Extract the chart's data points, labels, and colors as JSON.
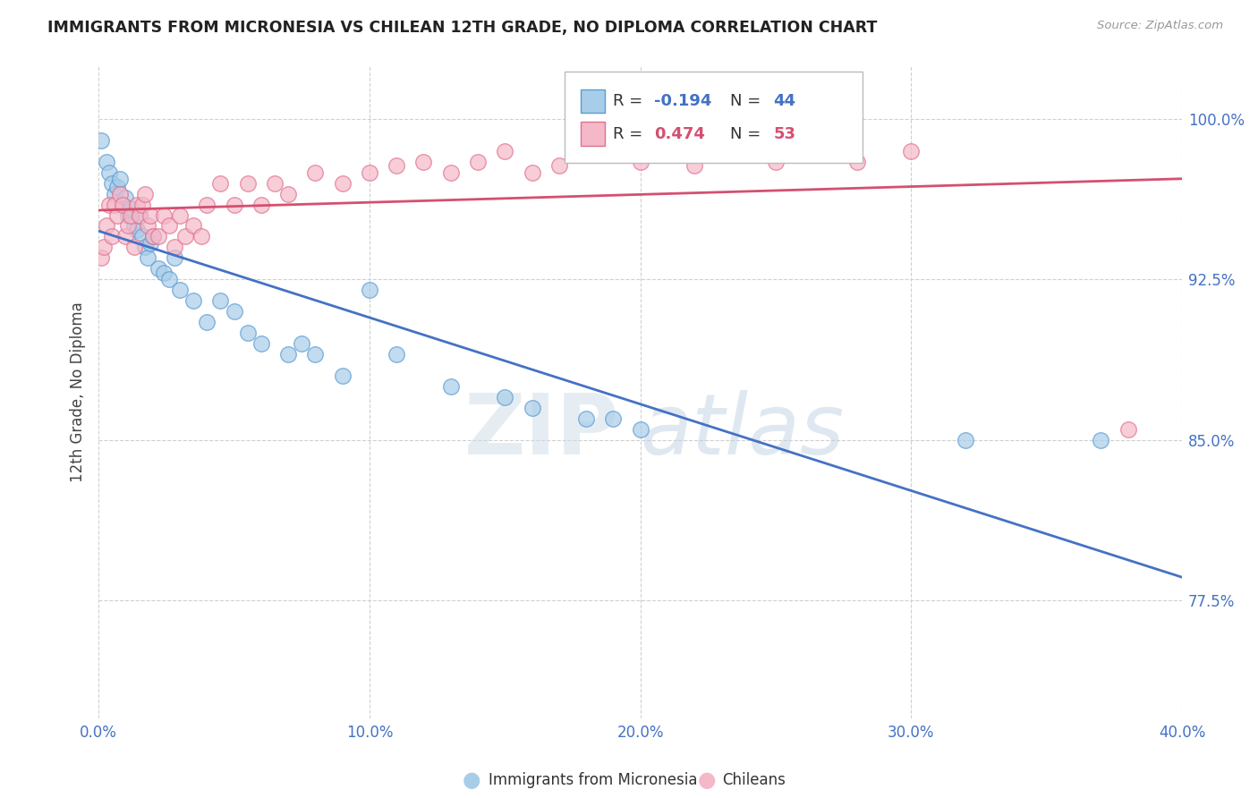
{
  "title": "IMMIGRANTS FROM MICRONESIA VS CHILEAN 12TH GRADE, NO DIPLOMA CORRELATION CHART",
  "source": "Source: ZipAtlas.com",
  "xlabel_ticks": [
    "0.0%",
    "10.0%",
    "20.0%",
    "30.0%",
    "40.0%"
  ],
  "xlabel_tick_vals": [
    0.0,
    0.1,
    0.2,
    0.3,
    0.4
  ],
  "ylabel_ticks": [
    "77.5%",
    "85.0%",
    "92.5%",
    "100.0%"
  ],
  "ylabel_tick_vals": [
    0.775,
    0.85,
    0.925,
    1.0
  ],
  "xlim": [
    0.0,
    0.4
  ],
  "ylim": [
    0.72,
    1.025
  ],
  "ylabel": "12th Grade, No Diploma",
  "blue_label": "Immigrants from Micronesia",
  "pink_label": "Chileans",
  "blue_R": "-0.194",
  "blue_N": "44",
  "pink_R": "0.474",
  "pink_N": "53",
  "blue_color": "#a8cde8",
  "pink_color": "#f4b8c8",
  "blue_edge_color": "#5b9bd5",
  "pink_edge_color": "#e07090",
  "blue_line_color": "#4472c4",
  "pink_line_color": "#d45070",
  "watermark_zip": "ZIP",
  "watermark_atlas": "atlas",
  "blue_scatter_x": [
    0.001,
    0.003,
    0.004,
    0.005,
    0.006,
    0.007,
    0.008,
    0.009,
    0.01,
    0.011,
    0.012,
    0.013,
    0.014,
    0.015,
    0.016,
    0.017,
    0.018,
    0.019,
    0.02,
    0.022,
    0.024,
    0.026,
    0.028,
    0.03,
    0.035,
    0.04,
    0.045,
    0.05,
    0.055,
    0.06,
    0.07,
    0.075,
    0.08,
    0.09,
    0.1,
    0.11,
    0.13,
    0.15,
    0.16,
    0.18,
    0.19,
    0.2,
    0.32,
    0.37
  ],
  "blue_scatter_y": [
    0.99,
    0.98,
    0.975,
    0.97,
    0.965,
    0.968,
    0.972,
    0.96,
    0.963,
    0.955,
    0.958,
    0.95,
    0.948,
    0.955,
    0.945,
    0.94,
    0.935,
    0.942,
    0.945,
    0.93,
    0.928,
    0.925,
    0.935,
    0.92,
    0.915,
    0.905,
    0.915,
    0.91,
    0.9,
    0.895,
    0.89,
    0.895,
    0.89,
    0.88,
    0.92,
    0.89,
    0.875,
    0.87,
    0.865,
    0.86,
    0.86,
    0.855,
    0.85,
    0.85
  ],
  "pink_scatter_x": [
    0.001,
    0.002,
    0.003,
    0.004,
    0.005,
    0.006,
    0.007,
    0.008,
    0.009,
    0.01,
    0.011,
    0.012,
    0.013,
    0.014,
    0.015,
    0.016,
    0.017,
    0.018,
    0.019,
    0.02,
    0.022,
    0.024,
    0.026,
    0.028,
    0.03,
    0.032,
    0.035,
    0.038,
    0.04,
    0.045,
    0.05,
    0.055,
    0.06,
    0.065,
    0.07,
    0.08,
    0.09,
    0.1,
    0.11,
    0.12,
    0.13,
    0.14,
    0.15,
    0.16,
    0.17,
    0.18,
    0.2,
    0.22,
    0.24,
    0.25,
    0.28,
    0.3,
    0.38
  ],
  "pink_scatter_y": [
    0.935,
    0.94,
    0.95,
    0.96,
    0.945,
    0.96,
    0.955,
    0.965,
    0.96,
    0.945,
    0.95,
    0.955,
    0.94,
    0.96,
    0.955,
    0.96,
    0.965,
    0.95,
    0.955,
    0.945,
    0.945,
    0.955,
    0.95,
    0.94,
    0.955,
    0.945,
    0.95,
    0.945,
    0.96,
    0.97,
    0.96,
    0.97,
    0.96,
    0.97,
    0.965,
    0.975,
    0.97,
    0.975,
    0.978,
    0.98,
    0.975,
    0.98,
    0.985,
    0.975,
    0.978,
    0.985,
    0.98,
    0.978,
    0.985,
    0.98,
    0.98,
    0.985,
    0.855
  ]
}
